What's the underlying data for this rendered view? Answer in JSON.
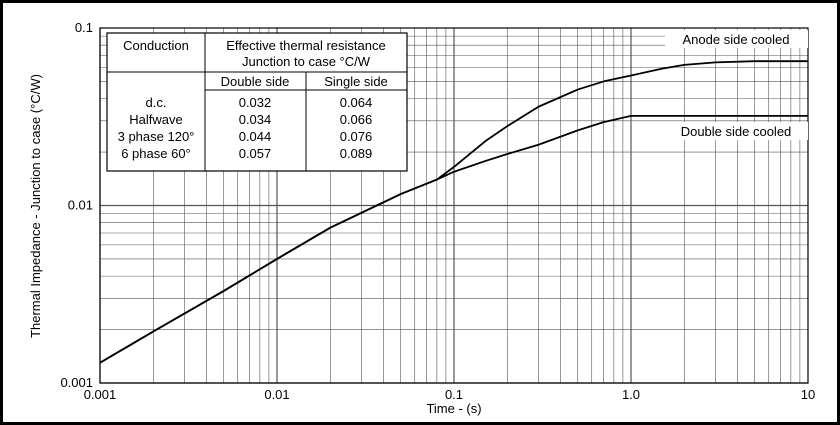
{
  "chart_data": {
    "type": "line",
    "xscale": "log",
    "yscale": "log",
    "xlim": [
      0.001,
      10
    ],
    "ylim": [
      0.001,
      0.1
    ],
    "xlabel": "Time - (s)",
    "ylabel": "Thermal Impedance - Junction to case (°C/W)",
    "x_tick_labels": [
      "0.001",
      "0.01",
      "0.1",
      "1.0",
      "10"
    ],
    "y_tick_labels": [
      "0.001",
      "0.01",
      "0.1"
    ],
    "grid": true,
    "series": [
      {
        "name": "Anode side cooled",
        "x": [
          0.001,
          0.002,
          0.005,
          0.01,
          0.02,
          0.05,
          0.08,
          0.1,
          0.15,
          0.2,
          0.3,
          0.5,
          0.7,
          1.0,
          1.5,
          2,
          3,
          5,
          10
        ],
        "y": [
          0.0013,
          0.00195,
          0.0033,
          0.005,
          0.0075,
          0.0116,
          0.014,
          0.0165,
          0.023,
          0.028,
          0.036,
          0.045,
          0.05,
          0.054,
          0.059,
          0.062,
          0.064,
          0.065,
          0.065
        ]
      },
      {
        "name": "Double side cooled",
        "x": [
          0.001,
          0.002,
          0.005,
          0.01,
          0.02,
          0.05,
          0.08,
          0.1,
          0.15,
          0.2,
          0.3,
          0.5,
          0.7,
          1.0,
          1.5,
          2,
          3,
          5,
          10
        ],
        "y": [
          0.0013,
          0.00195,
          0.0033,
          0.005,
          0.0075,
          0.0116,
          0.014,
          0.0155,
          0.0178,
          0.0195,
          0.022,
          0.0265,
          0.0295,
          0.032,
          0.032,
          0.032,
          0.032,
          0.032,
          0.032
        ]
      }
    ],
    "annotations": [
      "Anode side cooled",
      "Double side cooled"
    ],
    "table": {
      "headers": [
        "Conduction",
        "Effective thermal resistance",
        "Junction to case °C/W"
      ],
      "subheaders": [
        "Double side",
        "Single side"
      ],
      "rows": [
        [
          "d.c.",
          "0.032",
          "0.064"
        ],
        [
          "Halfwave",
          "0.034",
          "0.066"
        ],
        [
          "3 phase 120°",
          "0.044",
          "0.076"
        ],
        [
          "6 phase 60°",
          "0.057",
          "0.089"
        ]
      ]
    }
  }
}
